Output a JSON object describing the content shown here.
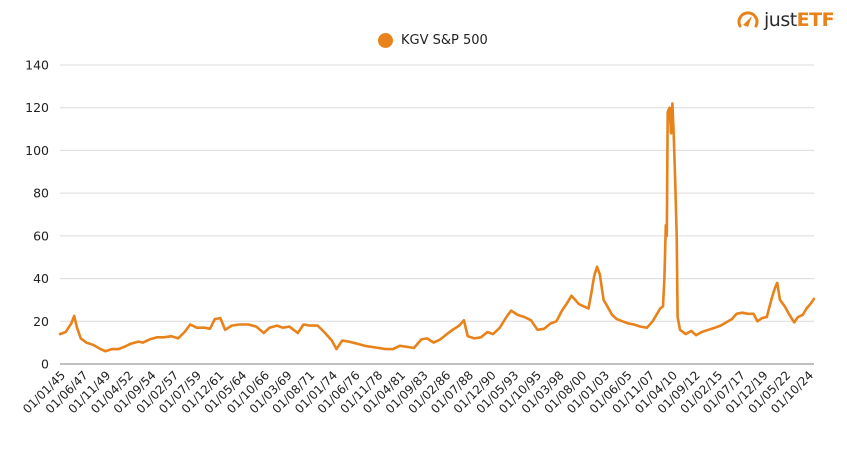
{
  "brand": {
    "name_prefix": "just",
    "name_suffix": "ETF",
    "accent": "#e8821b"
  },
  "legend": {
    "label": "KGV S&P 500",
    "color": "#e8821b"
  },
  "chart_data": {
    "type": "line",
    "title": "",
    "xlabel": "",
    "ylabel": "",
    "ylim": [
      0,
      140
    ],
    "yticks": [
      0,
      20,
      40,
      60,
      80,
      100,
      120,
      140
    ],
    "grid": true,
    "legend_position": "top-center",
    "xlim_years": [
      1945.0,
      2024.9
    ],
    "xtick_labels": [
      "01/01/45",
      "01/06/47",
      "01/11/49",
      "01/04/52",
      "01/09/54",
      "01/02/57",
      "01/07/59",
      "01/12/61",
      "01/05/64",
      "01/10/66",
      "01/03/69",
      "01/08/71",
      "01/01/74",
      "01/06/76",
      "01/11/78",
      "01/04/81",
      "01/09/83",
      "01/02/86",
      "01/07/88",
      "01/12/90",
      "01/05/93",
      "01/10/95",
      "01/03/98",
      "01/08/00",
      "01/01/03",
      "01/06/05",
      "01/11/07",
      "01/04/10",
      "01/09/12",
      "01/02/15",
      "01/07/17",
      "01/12/19",
      "01/05/22",
      "01/10/24"
    ],
    "series": [
      {
        "name": "KGV S&P 500",
        "color": "#e8821b",
        "points": [
          [
            1945.0,
            14
          ],
          [
            1945.6,
            15
          ],
          [
            1946.2,
            19
          ],
          [
            1946.5,
            22.5
          ],
          [
            1946.8,
            17
          ],
          [
            1947.2,
            12
          ],
          [
            1947.8,
            10
          ],
          [
            1948.5,
            9
          ],
          [
            1949.3,
            7
          ],
          [
            1949.8,
            6
          ],
          [
            1950.5,
            7
          ],
          [
            1951.2,
            7
          ],
          [
            1951.8,
            8
          ],
          [
            1952.5,
            9.5
          ],
          [
            1953.3,
            10.5
          ],
          [
            1953.8,
            10
          ],
          [
            1954.5,
            11.5
          ],
          [
            1955.3,
            12.5
          ],
          [
            1956.0,
            12.5
          ],
          [
            1956.8,
            13
          ],
          [
            1957.5,
            12
          ],
          [
            1958.2,
            15
          ],
          [
            1958.8,
            18.5
          ],
          [
            1959.5,
            17
          ],
          [
            1960.3,
            17
          ],
          [
            1960.9,
            16.5
          ],
          [
            1961.4,
            21
          ],
          [
            1962.0,
            21.5
          ],
          [
            1962.5,
            16
          ],
          [
            1963.2,
            18
          ],
          [
            1964.0,
            18.5
          ],
          [
            1965.0,
            18.5
          ],
          [
            1965.8,
            17.5
          ],
          [
            1966.6,
            14.5
          ],
          [
            1967.2,
            17
          ],
          [
            1968.0,
            18
          ],
          [
            1968.6,
            17
          ],
          [
            1969.3,
            17.5
          ],
          [
            1970.2,
            14.5
          ],
          [
            1970.8,
            18.5
          ],
          [
            1971.5,
            18
          ],
          [
            1972.3,
            18
          ],
          [
            1973.0,
            15
          ],
          [
            1973.8,
            11
          ],
          [
            1974.3,
            7
          ],
          [
            1974.9,
            11
          ],
          [
            1975.6,
            10.5
          ],
          [
            1976.5,
            9.5
          ],
          [
            1977.3,
            8.5
          ],
          [
            1978.0,
            8
          ],
          [
            1978.8,
            7.5
          ],
          [
            1979.5,
            7
          ],
          [
            1980.3,
            7
          ],
          [
            1981.0,
            8.5
          ],
          [
            1981.8,
            8
          ],
          [
            1982.5,
            7.5
          ],
          [
            1983.3,
            11.5
          ],
          [
            1983.9,
            12
          ],
          [
            1984.6,
            10
          ],
          [
            1985.3,
            11.5
          ],
          [
            1986.0,
            14
          ],
          [
            1986.6,
            16
          ],
          [
            1987.3,
            18
          ],
          [
            1987.8,
            20.5
          ],
          [
            1988.2,
            13
          ],
          [
            1988.9,
            12
          ],
          [
            1989.6,
            12.5
          ],
          [
            1990.3,
            15
          ],
          [
            1990.9,
            14
          ],
          [
            1991.6,
            17
          ],
          [
            1992.3,
            22
          ],
          [
            1992.8,
            25
          ],
          [
            1993.5,
            23
          ],
          [
            1994.2,
            22
          ],
          [
            1994.9,
            20.5
          ],
          [
            1995.6,
            16
          ],
          [
            1996.3,
            16.5
          ],
          [
            1997.0,
            19
          ],
          [
            1997.6,
            20
          ],
          [
            1998.2,
            25
          ],
          [
            1998.8,
            29
          ],
          [
            1999.2,
            32
          ],
          [
            1999.6,
            30
          ],
          [
            2000.0,
            28
          ],
          [
            2000.5,
            27
          ],
          [
            2001.0,
            26
          ],
          [
            2001.3,
            33
          ],
          [
            2001.6,
            41
          ],
          [
            2001.9,
            45.5
          ],
          [
            2002.2,
            42
          ],
          [
            2002.6,
            30
          ],
          [
            2003.0,
            27
          ],
          [
            2003.5,
            23
          ],
          [
            2004.0,
            21
          ],
          [
            2004.6,
            20
          ],
          [
            2005.2,
            19
          ],
          [
            2005.8,
            18.5
          ],
          [
            2006.5,
            17.5
          ],
          [
            2007.2,
            17
          ],
          [
            2007.8,
            20
          ],
          [
            2008.2,
            23
          ],
          [
            2008.6,
            26
          ],
          [
            2008.9,
            27
          ],
          [
            2009.05,
            40
          ],
          [
            2009.2,
            65
          ],
          [
            2009.3,
            60
          ],
          [
            2009.4,
            118
          ],
          [
            2009.6,
            120
          ],
          [
            2009.75,
            108
          ],
          [
            2009.9,
            122
          ],
          [
            2010.05,
            105
          ],
          [
            2010.2,
            84
          ],
          [
            2010.35,
            60
          ],
          [
            2010.45,
            22
          ],
          [
            2010.7,
            16
          ],
          [
            2011.3,
            14
          ],
          [
            2011.9,
            15.5
          ],
          [
            2012.4,
            13.5
          ],
          [
            2013.0,
            15
          ],
          [
            2013.7,
            16
          ],
          [
            2014.4,
            17
          ],
          [
            2015.0,
            18
          ],
          [
            2015.6,
            19.5
          ],
          [
            2016.2,
            21
          ],
          [
            2016.7,
            23.5
          ],
          [
            2017.3,
            24
          ],
          [
            2017.9,
            23.5
          ],
          [
            2018.5,
            23.5
          ],
          [
            2018.9,
            20
          ],
          [
            2019.4,
            21.5
          ],
          [
            2019.9,
            22
          ],
          [
            2020.2,
            27
          ],
          [
            2020.5,
            32
          ],
          [
            2020.8,
            36
          ],
          [
            2021.0,
            38
          ],
          [
            2021.3,
            30
          ],
          [
            2021.8,
            27
          ],
          [
            2022.3,
            23
          ],
          [
            2022.8,
            19.5
          ],
          [
            2023.2,
            22
          ],
          [
            2023.7,
            23
          ],
          [
            2024.1,
            26
          ],
          [
            2024.5,
            28
          ],
          [
            2024.9,
            30.5
          ]
        ]
      }
    ]
  }
}
